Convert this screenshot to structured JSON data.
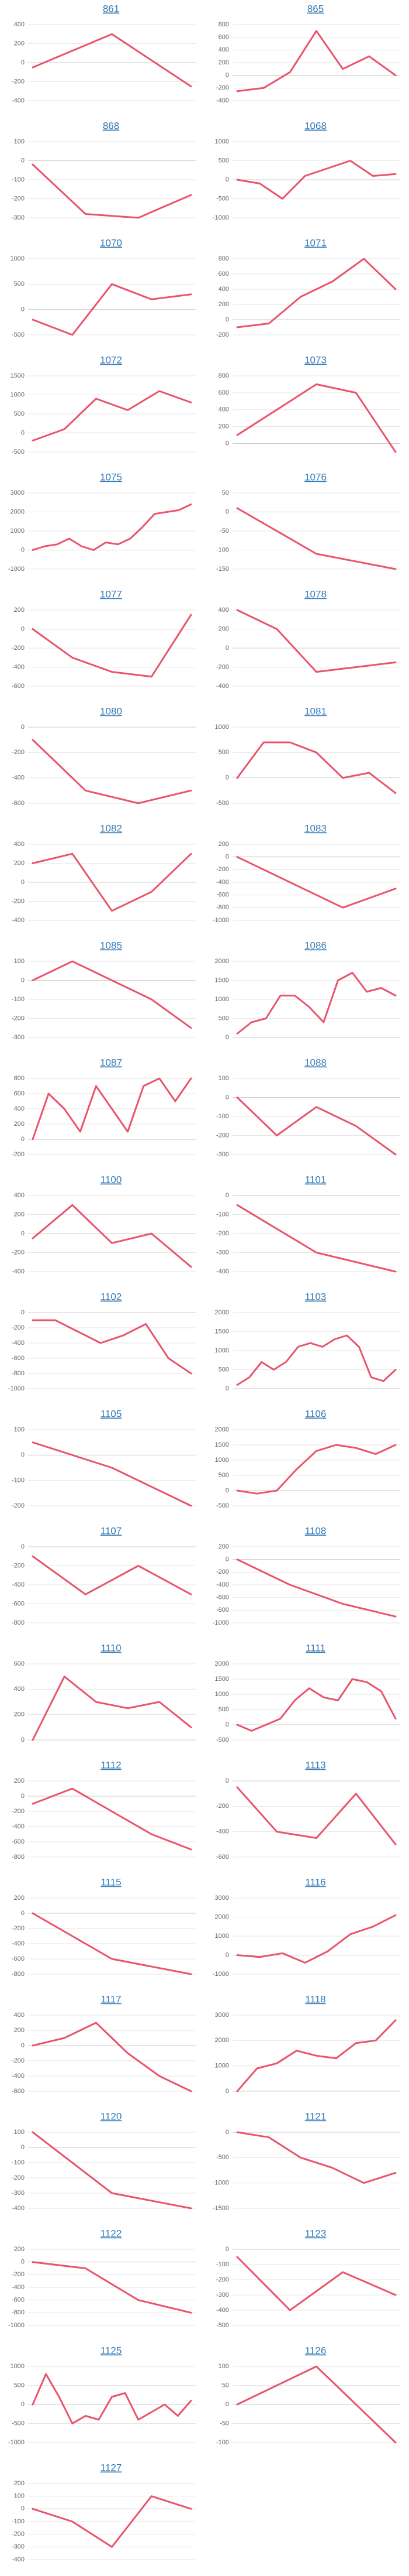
{
  "chart_data": [
    {
      "type": "line",
      "title": "861",
      "color": "#e9546b",
      "values": [
        -50,
        300,
        -250
      ],
      "ylim": [
        -400,
        400
      ],
      "yticks": [
        -400,
        -200,
        0,
        200,
        400
      ]
    },
    {
      "type": "line",
      "title": "865",
      "color": "#e9546b",
      "values": [
        -250,
        -200,
        50,
        700,
        100,
        300,
        0
      ],
      "ylim": [
        -400,
        800
      ],
      "yticks": [
        -400,
        -200,
        0,
        200,
        400,
        600,
        800
      ]
    },
    {
      "type": "line",
      "title": "868",
      "color": "#e9546b",
      "values": [
        -20,
        -280,
        -300,
        -180
      ],
      "ylim": [
        -300,
        100
      ],
      "yticks": [
        -300,
        -200,
        -100,
        0,
        100
      ]
    },
    {
      "type": "line",
      "title": "1068",
      "color": "#e9546b",
      "values": [
        0,
        -100,
        -500,
        100,
        300,
        500,
        100,
        150
      ],
      "ylim": [
        -1000,
        1000
      ],
      "yticks": [
        -1000,
        -500,
        0,
        500,
        1000
      ]
    },
    {
      "type": "line",
      "title": "1070",
      "color": "#e9546b",
      "values": [
        -200,
        -500,
        500,
        200,
        300
      ],
      "ylim": [
        -500,
        1000
      ],
      "yticks": [
        -500,
        0,
        500,
        1000
      ]
    },
    {
      "type": "line",
      "title": "1071",
      "color": "#e9546b",
      "values": [
        -100,
        -50,
        300,
        500,
        800,
        400
      ],
      "ylim": [
        -200,
        800
      ],
      "yticks": [
        -200,
        0,
        200,
        400,
        600,
        800
      ]
    },
    {
      "type": "line",
      "title": "1072",
      "color": "#e9546b",
      "values": [
        -200,
        100,
        900,
        600,
        1100,
        800
      ],
      "ylim": [
        -500,
        1500
      ],
      "yticks": [
        -500,
        0,
        500,
        1000,
        1500
      ]
    },
    {
      "type": "line",
      "title": "1073",
      "color": "#e9546b",
      "values": [
        100,
        400,
        700,
        600,
        -100
      ],
      "ylim": [
        -100,
        800
      ],
      "yticks": [
        0,
        200,
        400,
        600,
        800
      ]
    },
    {
      "type": "line",
      "title": "1075",
      "color": "#e9546b",
      "values": [
        0,
        200,
        300,
        600,
        200,
        0,
        400,
        300,
        600,
        1200,
        1900,
        2000,
        2100,
        2400
      ],
      "ylim": [
        -1000,
        3000
      ],
      "yticks": [
        -1000,
        0,
        1000,
        2000,
        3000
      ]
    },
    {
      "type": "line",
      "title": "1076",
      "color": "#e9546b",
      "values": [
        10,
        -110,
        -150
      ],
      "ylim": [
        -150,
        50
      ],
      "yticks": [
        -150,
        -100,
        -50,
        0,
        50
      ]
    },
    {
      "type": "line",
      "title": "1077",
      "color": "#e9546b",
      "values": [
        0,
        -300,
        -450,
        -500,
        150
      ],
      "ylim": [
        -600,
        200
      ],
      "yticks": [
        -600,
        -400,
        -200,
        0,
        200
      ]
    },
    {
      "type": "line",
      "title": "1078",
      "color": "#e9546b",
      "values": [
        400,
        200,
        -250,
        -200,
        -150
      ],
      "ylim": [
        -400,
        400
      ],
      "yticks": [
        -400,
        -200,
        0,
        200,
        400
      ]
    },
    {
      "type": "line",
      "title": "1080",
      "color": "#e9546b",
      "values": [
        -100,
        -500,
        -600,
        -500
      ],
      "ylim": [
        -600,
        0
      ],
      "yticks": [
        -600,
        -400,
        -200,
        0
      ]
    },
    {
      "type": "line",
      "title": "1081",
      "color": "#e9546b",
      "values": [
        0,
        700,
        700,
        500,
        0,
        100,
        -300
      ],
      "ylim": [
        -500,
        1000
      ],
      "yticks": [
        -500,
        0,
        500,
        1000
      ]
    },
    {
      "type": "line",
      "title": "1082",
      "color": "#e9546b",
      "values": [
        200,
        300,
        -300,
        -100,
        300
      ],
      "ylim": [
        -400,
        400
      ],
      "yticks": [
        -400,
        -200,
        0,
        200,
        400
      ]
    },
    {
      "type": "line",
      "title": "1083",
      "color": "#e9546b",
      "values": [
        0,
        -400,
        -800,
        -500
      ],
      "ylim": [
        -1000,
        200
      ],
      "yticks": [
        -1000,
        -800,
        -600,
        -400,
        -200,
        0,
        200
      ]
    },
    {
      "type": "line",
      "title": "1085",
      "color": "#e9546b",
      "values": [
        0,
        100,
        0,
        -100,
        -250
      ],
      "ylim": [
        -300,
        100
      ],
      "yticks": [
        -300,
        -200,
        -100,
        0,
        100
      ]
    },
    {
      "type": "line",
      "title": "1086",
      "color": "#e9546b",
      "values": [
        100,
        400,
        500,
        1100,
        1100,
        800,
        400,
        1500,
        1700,
        1200,
        1300,
        1100
      ],
      "ylim": [
        0,
        2000
      ],
      "yticks": [
        0,
        500,
        1000,
        1500,
        2000
      ]
    },
    {
      "type": "line",
      "title": "1087",
      "color": "#e9546b",
      "values": [
        0,
        600,
        400,
        100,
        700,
        400,
        100,
        700,
        800,
        500,
        800
      ],
      "ylim": [
        -200,
        800
      ],
      "yticks": [
        -200,
        0,
        200,
        400,
        600,
        800
      ]
    },
    {
      "type": "line",
      "title": "1088",
      "color": "#e9546b",
      "values": [
        0,
        -200,
        -50,
        -150,
        -300
      ],
      "ylim": [
        -300,
        100
      ],
      "yticks": [
        -300,
        -200,
        -100,
        0,
        100
      ]
    },
    {
      "type": "line",
      "title": "1100",
      "color": "#e9546b",
      "values": [
        -50,
        300,
        -100,
        0,
        -350
      ],
      "ylim": [
        -400,
        400
      ],
      "yticks": [
        -400,
        -200,
        0,
        200,
        400
      ]
    },
    {
      "type": "line",
      "title": "1101",
      "color": "#e9546b",
      "values": [
        -50,
        -300,
        -400
      ],
      "ylim": [
        -400,
        0
      ],
      "yticks": [
        -400,
        -300,
        -200,
        -100,
        0
      ]
    },
    {
      "type": "line",
      "title": "1102",
      "color": "#e9546b",
      "values": [
        -100,
        -100,
        -250,
        -400,
        -300,
        -150,
        -600,
        -800
      ],
      "ylim": [
        -1000,
        0
      ],
      "yticks": [
        -1000,
        -800,
        -600,
        -400,
        -200,
        0
      ]
    },
    {
      "type": "line",
      "title": "1103",
      "color": "#e9546b",
      "values": [
        100,
        300,
        700,
        500,
        700,
        1100,
        1200,
        1100,
        1300,
        1400,
        1100,
        300,
        200,
        500
      ],
      "ylim": [
        0,
        2000
      ],
      "yticks": [
        0,
        500,
        1000,
        1500,
        2000
      ]
    },
    {
      "type": "line",
      "title": "1105",
      "color": "#e9546b",
      "values": [
        50,
        -50,
        -200
      ],
      "ylim": [
        -200,
        100
      ],
      "yticks": [
        -200,
        -100,
        0,
        100
      ]
    },
    {
      "type": "line",
      "title": "1106",
      "color": "#e9546b",
      "values": [
        0,
        -100,
        0,
        700,
        1300,
        1500,
        1400,
        1200,
        1500
      ],
      "ylim": [
        -500,
        2000
      ],
      "yticks": [
        -500,
        0,
        500,
        1000,
        1500,
        2000
      ]
    },
    {
      "type": "line",
      "title": "1107",
      "color": "#e9546b",
      "values": [
        -100,
        -500,
        -200,
        -500
      ],
      "ylim": [
        -800,
        0
      ],
      "yticks": [
        -800,
        -600,
        -400,
        -200,
        0
      ]
    },
    {
      "type": "line",
      "title": "1108",
      "color": "#e9546b",
      "values": [
        0,
        -400,
        -700,
        -900
      ],
      "ylim": [
        -1000,
        200
      ],
      "yticks": [
        -1000,
        -800,
        -600,
        -400,
        -200,
        0,
        200
      ]
    },
    {
      "type": "line",
      "title": "1110",
      "color": "#e9546b",
      "values": [
        0,
        500,
        300,
        250,
        300,
        100
      ],
      "ylim": [
        0,
        600
      ],
      "yticks": [
        0,
        200,
        400,
        600
      ]
    },
    {
      "type": "line",
      "title": "1111",
      "color": "#e9546b",
      "values": [
        0,
        -200,
        0,
        200,
        800,
        1200,
        900,
        800,
        1500,
        1400,
        1100,
        200
      ],
      "ylim": [
        -500,
        2000
      ],
      "yticks": [
        -500,
        0,
        500,
        1000,
        1500,
        2000
      ]
    },
    {
      "type": "line",
      "title": "1112",
      "color": "#e9546b",
      "values": [
        -100,
        100,
        -200,
        -500,
        -700
      ],
      "ylim": [
        -800,
        200
      ],
      "yticks": [
        -800,
        -600,
        -400,
        -200,
        0,
        200
      ]
    },
    {
      "type": "line",
      "title": "1113",
      "color": "#e9546b",
      "values": [
        -50,
        -400,
        -450,
        -100,
        -500
      ],
      "ylim": [
        -600,
        0
      ],
      "yticks": [
        -600,
        -400,
        -200,
        0
      ]
    },
    {
      "type": "line",
      "title": "1115",
      "color": "#e9546b",
      "values": [
        0,
        -600,
        -800
      ],
      "ylim": [
        -800,
        200
      ],
      "yticks": [
        -800,
        -600,
        -400,
        -200,
        0,
        200
      ]
    },
    {
      "type": "line",
      "title": "1116",
      "color": "#e9546b",
      "values": [
        0,
        -100,
        100,
        -400,
        200,
        1100,
        1500,
        2100
      ],
      "ylim": [
        -1000,
        3000
      ],
      "yticks": [
        -1000,
        0,
        1000,
        2000,
        3000
      ]
    },
    {
      "type": "line",
      "title": "1117",
      "color": "#e9546b",
      "values": [
        0,
        100,
        300,
        -100,
        -400,
        -600
      ],
      "ylim": [
        -600,
        400
      ],
      "yticks": [
        -600,
        -400,
        -200,
        0,
        200,
        400
      ]
    },
    {
      "type": "line",
      "title": "1118",
      "color": "#e9546b",
      "values": [
        0,
        900,
        1100,
        1600,
        1400,
        1300,
        1900,
        2000,
        2800
      ],
      "ylim": [
        0,
        3000
      ],
      "yticks": [
        0,
        1000,
        2000,
        3000
      ]
    },
    {
      "type": "line",
      "title": "1120",
      "color": "#e9546b",
      "values": [
        100,
        -300,
        -400
      ],
      "ylim": [
        -400,
        100
      ],
      "yticks": [
        -400,
        -300,
        -200,
        -100,
        0,
        100
      ]
    },
    {
      "type": "line",
      "title": "1121",
      "color": "#e9546b",
      "values": [
        0,
        -100,
        -500,
        -700,
        -1000,
        -800
      ],
      "ylim": [
        -1500,
        0
      ],
      "yticks": [
        -1500,
        -1000,
        -500,
        0
      ]
    },
    {
      "type": "line",
      "title": "1122",
      "color": "#e9546b",
      "values": [
        0,
        -100,
        -600,
        -800
      ],
      "ylim": [
        -1000,
        200
      ],
      "yticks": [
        -1000,
        -800,
        -600,
        -400,
        -200,
        0,
        200
      ]
    },
    {
      "type": "line",
      "title": "1123",
      "color": "#e9546b",
      "values": [
        -50,
        -400,
        -150,
        -300
      ],
      "ylim": [
        -500,
        0
      ],
      "yticks": [
        -500,
        -400,
        -300,
        -200,
        -100,
        0
      ]
    },
    {
      "type": "line",
      "title": "1125",
      "color": "#e9546b",
      "values": [
        0,
        800,
        200,
        -500,
        -300,
        -400,
        200,
        300,
        -400,
        -200,
        0,
        -300,
        100
      ],
      "ylim": [
        -1000,
        1000
      ],
      "yticks": [
        -1000,
        -500,
        0,
        500,
        1000
      ]
    },
    {
      "type": "line",
      "title": "1126",
      "color": "#e9546b",
      "values": [
        0,
        100,
        -100
      ],
      "ylim": [
        -100,
        100
      ],
      "yticks": [
        -100,
        -50,
        0,
        50,
        100
      ]
    },
    {
      "type": "line",
      "title": "1127",
      "color": "#e9546b",
      "values": [
        0,
        -100,
        -300,
        100,
        0
      ],
      "ylim": [
        -400,
        200
      ],
      "yticks": [
        -400,
        -300,
        -200,
        -100,
        0,
        100,
        200
      ]
    }
  ]
}
